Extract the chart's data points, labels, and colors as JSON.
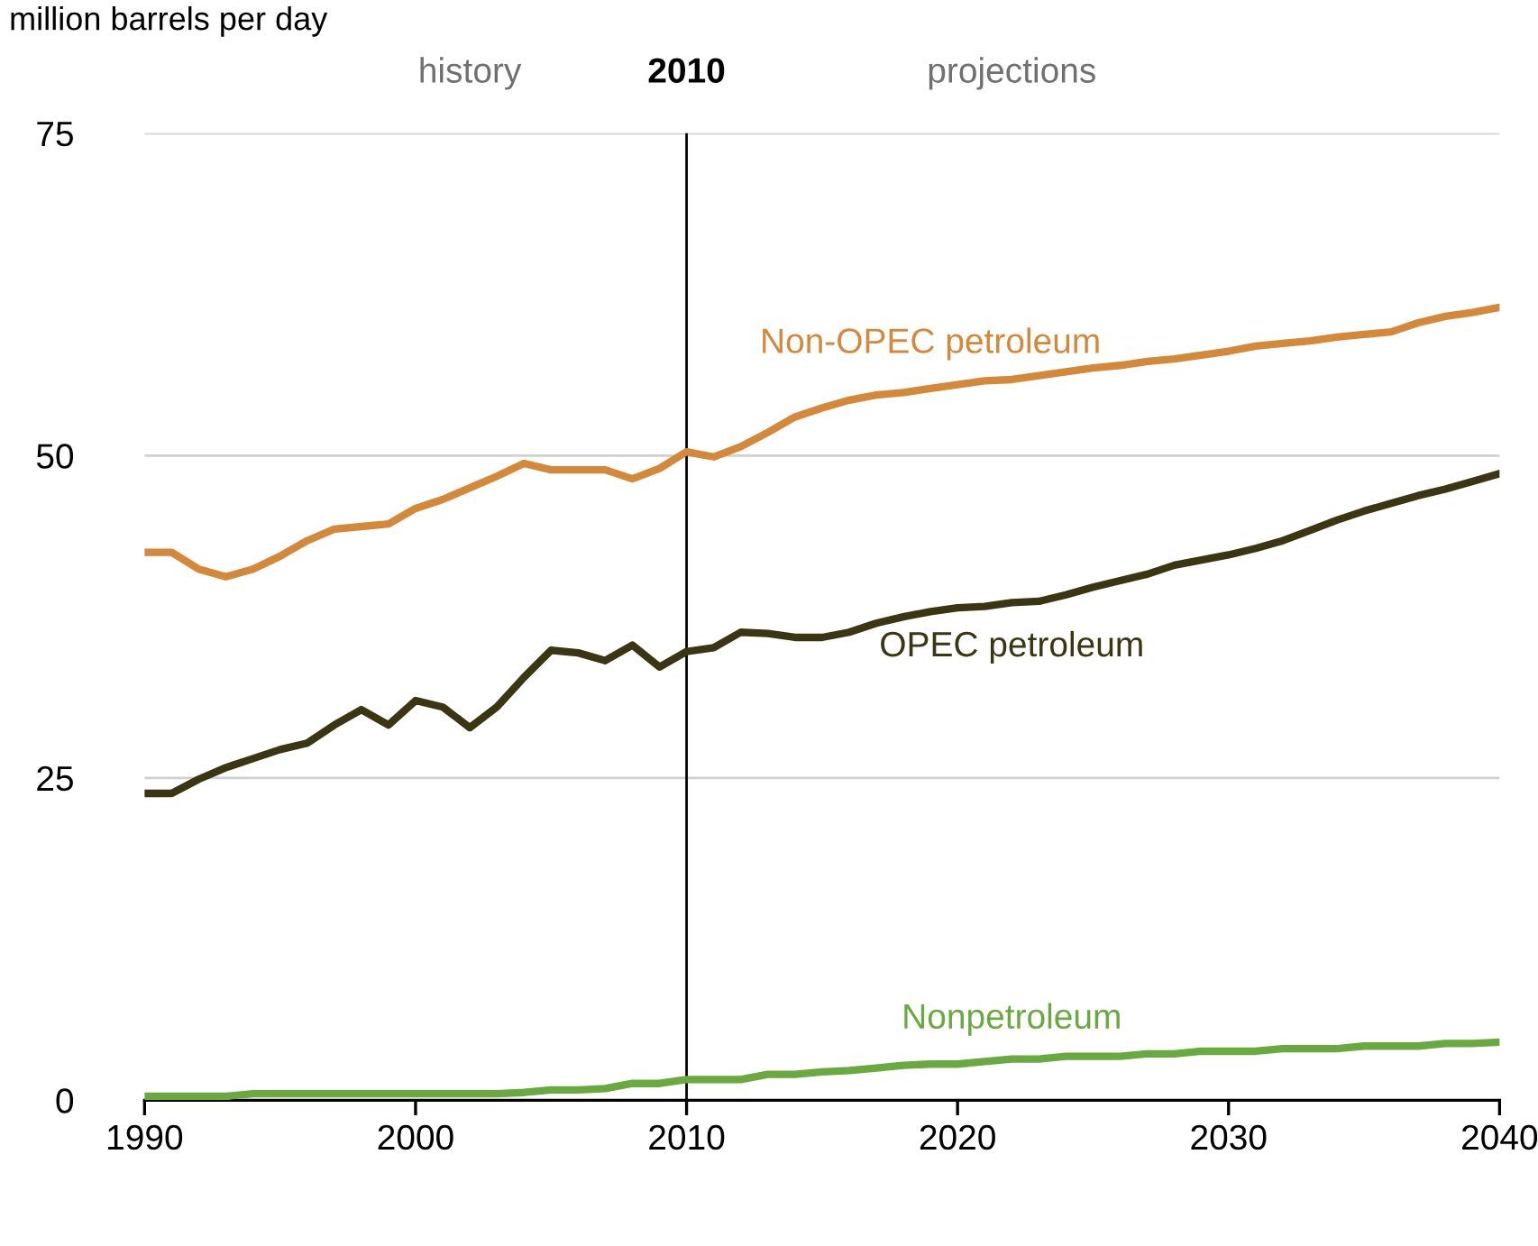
{
  "chart_data": {
    "type": "line",
    "ylabel": "million barrels per day",
    "x": [
      1990,
      1991,
      1992,
      1993,
      1994,
      1995,
      1996,
      1997,
      1998,
      1999,
      2000,
      2001,
      2002,
      2003,
      2004,
      2005,
      2006,
      2007,
      2008,
      2009,
      2010,
      2011,
      2012,
      2013,
      2014,
      2015,
      2016,
      2017,
      2018,
      2019,
      2020,
      2021,
      2022,
      2023,
      2024,
      2025,
      2026,
      2027,
      2028,
      2029,
      2030,
      2031,
      2032,
      2033,
      2034,
      2035,
      2036,
      2037,
      2038,
      2039,
      2040
    ],
    "series": [
      {
        "name": "Non-OPEC petroleum",
        "color": "#d4883a",
        "values": [
          42.5,
          42.5,
          41.2,
          40.6,
          41.2,
          42.2,
          43.4,
          44.3,
          44.5,
          44.7,
          45.9,
          46.6,
          47.5,
          48.4,
          49.4,
          48.9,
          48.9,
          48.9,
          48.2,
          49.0,
          50.3,
          49.9,
          50.7,
          51.8,
          53.0,
          53.7,
          54.3,
          54.7,
          54.9,
          55.2,
          55.5,
          55.8,
          55.9,
          56.2,
          56.5,
          56.8,
          57.0,
          57.3,
          57.5,
          57.8,
          58.1,
          58.5,
          58.7,
          58.9,
          59.2,
          59.4,
          59.6,
          60.3,
          60.8,
          61.1,
          61.5
        ]
      },
      {
        "name": "OPEC petroleum",
        "color": "#3a3512",
        "values": [
          23.8,
          23.8,
          24.9,
          25.8,
          26.5,
          27.2,
          27.7,
          29.1,
          30.3,
          29.1,
          31.0,
          30.5,
          28.9,
          30.5,
          32.8,
          34.9,
          34.7,
          34.1,
          35.3,
          33.6,
          34.8,
          35.1,
          36.3,
          36.2,
          35.9,
          35.9,
          36.3,
          37.0,
          37.5,
          37.9,
          38.2,
          38.3,
          38.6,
          38.7,
          39.2,
          39.8,
          40.3,
          40.8,
          41.5,
          41.9,
          42.3,
          42.8,
          43.4,
          44.2,
          45.0,
          45.7,
          46.3,
          46.9,
          47.4,
          48.0,
          48.6
        ]
      },
      {
        "name": "Nonpetroleum",
        "color": "#6aa840",
        "values": [
          0.3,
          0.3,
          0.3,
          0.3,
          0.5,
          0.5,
          0.5,
          0.5,
          0.5,
          0.5,
          0.5,
          0.5,
          0.5,
          0.5,
          0.6,
          0.8,
          0.8,
          0.9,
          1.3,
          1.3,
          1.6,
          1.6,
          1.6,
          2.0,
          2.0,
          2.2,
          2.3,
          2.5,
          2.7,
          2.8,
          2.8,
          3.0,
          3.2,
          3.2,
          3.4,
          3.4,
          3.4,
          3.6,
          3.6,
          3.8,
          3.8,
          3.8,
          4.0,
          4.0,
          4.0,
          4.2,
          4.2,
          4.2,
          4.4,
          4.4,
          4.5
        ]
      }
    ],
    "xlim": [
      1990,
      2040
    ],
    "xticks": [
      1990,
      2000,
      2010,
      2020,
      2030,
      2040
    ],
    "ylim": [
      0,
      75
    ],
    "yticks": [
      0,
      25,
      50,
      75
    ],
    "grid": "y",
    "legend": false,
    "marker": "none",
    "line_style": "solid",
    "ref_lines": [
      {
        "axis": "x",
        "value": 2010,
        "label": "2010",
        "color": "#000000"
      }
    ],
    "annotations": [
      "history",
      "projections"
    ]
  }
}
